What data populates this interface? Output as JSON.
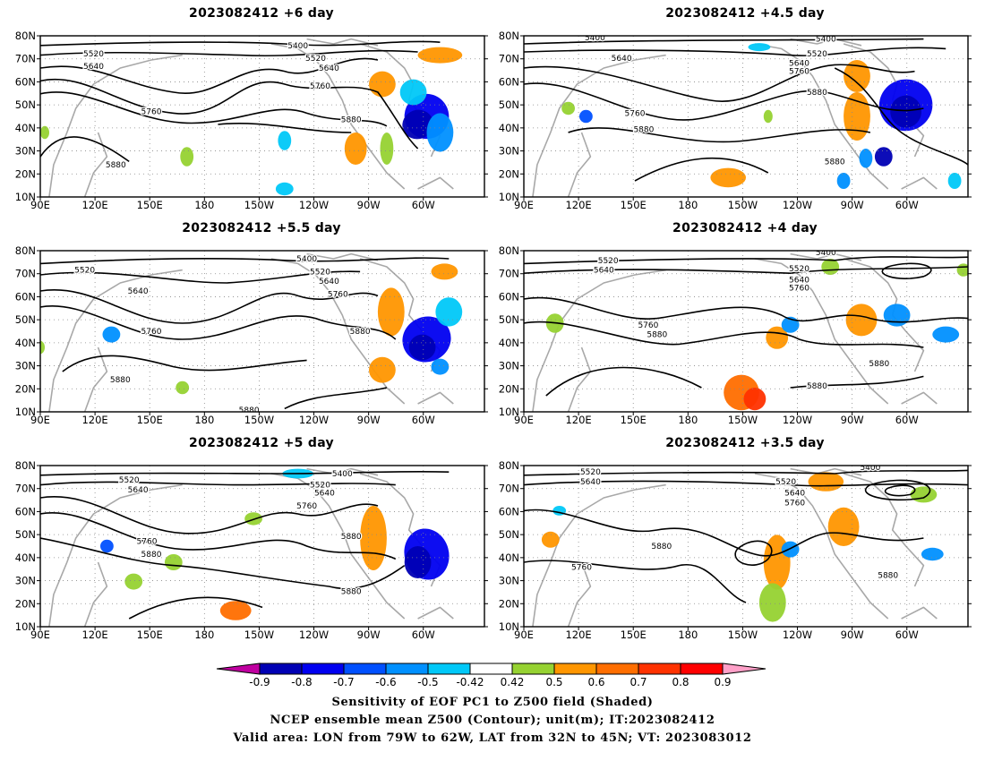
{
  "panels": [
    {
      "title": "2023082412 +6 day"
    },
    {
      "title": "2023082412 +4.5 day"
    },
    {
      "title": "2023082412 +5.5 day"
    },
    {
      "title": "2023082412 +4 day"
    },
    {
      "title": "2023082412 +5 day"
    },
    {
      "title": "2023082412 +3.5 day"
    }
  ],
  "axes": {
    "lat_labels": [
      "10N",
      "20N",
      "30N",
      "40N",
      "50N",
      "60N",
      "70N",
      "80N"
    ],
    "lon_labels": [
      "90E",
      "120E",
      "150E",
      "180",
      "150W",
      "120W",
      "90W",
      "60W"
    ]
  },
  "contour_labels": [
    "5400",
    "5520",
    "5640",
    "5760",
    "5880"
  ],
  "colorbar": {
    "tick_labels": [
      "-0.9",
      "-0.8",
      "-0.7",
      "-0.6",
      "-0.5",
      "-0.42",
      "0.42",
      "0.5",
      "0.6",
      "0.7",
      "0.8",
      "0.9"
    ],
    "colors": [
      "#c000a0",
      "#0000b4",
      "#0000f0",
      "#0050ff",
      "#0090ff",
      "#00c8f8",
      "#ffffff",
      "#96d232",
      "#ff9600",
      "#ff6e00",
      "#ff3200",
      "#ff0000",
      "#ffa0c8"
    ]
  },
  "footer": {
    "line1": "Sensitivity of EOF PC1 to Z500 field (Shaded)",
    "line2": "NCEP ensemble mean Z500 (Contour); unit(m); IT:2023082412",
    "line3": "Valid area: LON from 79W to 62W, LAT from 32N to 45N; VT: 2023083012"
  }
}
